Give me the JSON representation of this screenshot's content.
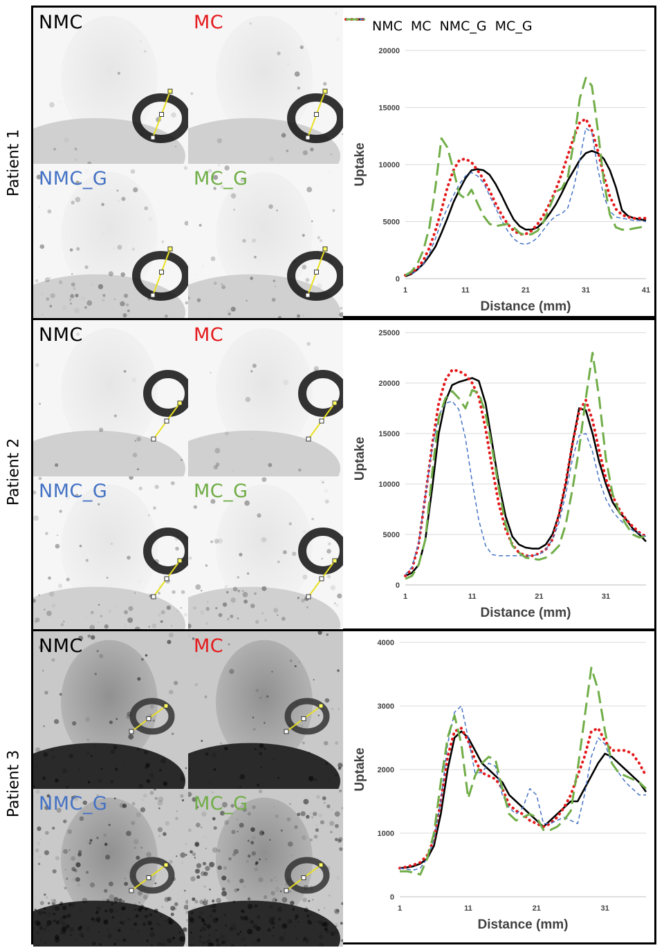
{
  "legend": [
    {
      "name": "NMC",
      "color": "#000000",
      "dash": ""
    },
    {
      "name": "MC",
      "color": "#e4191c",
      "dash": "1,7"
    },
    {
      "name": "NMC_G",
      "color": "#4472c4",
      "dash": "6,4"
    },
    {
      "name": "MC_G",
      "color": "#70ad47",
      "dash": "18,8"
    }
  ],
  "image_labels": [
    {
      "text": "NMC",
      "color": "#000000"
    },
    {
      "text": "MC",
      "color": "#e4191c"
    },
    {
      "text": "NMC_G",
      "color": "#4472c4"
    },
    {
      "text": "MC_G",
      "color": "#70ad47"
    }
  ],
  "patients": [
    {
      "label": "Patient 1"
    },
    {
      "label": "Patient 2"
    },
    {
      "label": "Patient 3"
    }
  ],
  "chart_data": [
    {
      "type": "line",
      "xlabel": "Distance (mm)",
      "ylabel": "Uptake",
      "x": [
        1,
        2,
        3,
        4,
        5,
        6,
        7,
        8,
        9,
        10,
        11,
        12,
        13,
        14,
        15,
        16,
        17,
        18,
        19,
        20,
        21,
        22,
        23,
        24,
        25,
        26,
        27,
        28,
        29,
        30,
        31,
        32,
        33,
        34,
        35,
        36,
        37,
        38,
        39,
        40,
        41
      ],
      "xticks": [
        1,
        11,
        21,
        31,
        41
      ],
      "xlim": [
        1,
        41
      ],
      "ylim": [
        0,
        20000
      ],
      "yticks": [
        0,
        5000,
        10000,
        15000,
        20000
      ],
      "series": [
        {
          "name": "NMC",
          "values": [
            200,
            400,
            800,
            1300,
            2000,
            2800,
            4000,
            5300,
            6700,
            7800,
            8800,
            9500,
            9600,
            9500,
            9100,
            8300,
            7300,
            6200,
            5200,
            4600,
            4300,
            4300,
            4500,
            5000,
            5700,
            6500,
            7500,
            8600,
            9500,
            10400,
            11000,
            11200,
            11000,
            10500,
            9500,
            8000,
            6000,
            5500,
            5300,
            5200,
            5100
          ]
        },
        {
          "name": "MC",
          "values": [
            300,
            500,
            900,
            1600,
            2700,
            4200,
            6000,
            8000,
            9500,
            10400,
            10500,
            10200,
            9500,
            8700,
            7700,
            6600,
            5600,
            4800,
            4200,
            3900,
            3900,
            4200,
            4800,
            5600,
            6600,
            7800,
            9200,
            10800,
            12400,
            13700,
            14000,
            13000,
            11200,
            9000,
            7200,
            6100,
            5600,
            5400,
            5300,
            5300,
            5300
          ]
        },
        {
          "name": "NMC_G",
          "values": [
            300,
            400,
            700,
            1300,
            2200,
            3500,
            5000,
            6200,
            7300,
            8300,
            9000,
            9300,
            9000,
            8400,
            7300,
            6200,
            5100,
            4200,
            3500,
            3100,
            3000,
            3200,
            3600,
            4300,
            5000,
            5500,
            5700,
            6200,
            8000,
            10500,
            13200,
            12800,
            9600,
            7200,
            5900,
            5400,
            5300,
            5200,
            5100,
            5100,
            5000
          ]
        },
        {
          "name": "MC_G",
          "values": [
            300,
            600,
            1300,
            2500,
            4500,
            8000,
            12300,
            11500,
            9500,
            7400,
            7000,
            7800,
            6600,
            5500,
            4800,
            4600,
            4700,
            4800,
            4500,
            4000,
            3800,
            3900,
            4200,
            5000,
            6300,
            7600,
            7900,
            8900,
            12000,
            15800,
            17600,
            16900,
            13000,
            8500,
            5600,
            4500,
            4300,
            4300,
            4400,
            4500,
            4600
          ]
        }
      ]
    },
    {
      "type": "line",
      "xlabel": "Distance (mm)",
      "ylabel": "Uptake",
      "x": [
        1,
        2,
        3,
        4,
        5,
        6,
        7,
        8,
        9,
        10,
        11,
        12,
        13,
        14,
        15,
        16,
        17,
        18,
        19,
        20,
        21,
        22,
        23,
        24,
        25,
        26,
        27,
        28,
        29,
        30,
        31,
        32,
        33,
        34,
        35,
        36,
        37
      ],
      "xticks": [
        1,
        11,
        21,
        31
      ],
      "xlim": [
        1,
        37
      ],
      "ylim": [
        0,
        25000
      ],
      "yticks": [
        0,
        5000,
        10000,
        15000,
        20000,
        25000
      ],
      "series": [
        {
          "name": "NMC",
          "values": [
            900,
            1200,
            2000,
            4500,
            9500,
            15000,
            18200,
            19800,
            20100,
            20300,
            20500,
            20200,
            18000,
            14000,
            10000,
            6800,
            4800,
            4000,
            3700,
            3600,
            3600,
            4000,
            5000,
            7000,
            10000,
            14000,
            17500,
            17300,
            15000,
            12200,
            10000,
            8200,
            7200,
            6500,
            5600,
            5000,
            4300
          ]
        },
        {
          "name": "MC",
          "values": [
            900,
            1600,
            4000,
            8800,
            13800,
            18000,
            20300,
            21300,
            21200,
            20800,
            20000,
            18600,
            15500,
            11500,
            8000,
            5500,
            4000,
            3200,
            2900,
            2900,
            3100,
            3500,
            4500,
            7000,
            10200,
            14000,
            17200,
            18300,
            16300,
            13300,
            10500,
            8800,
            7500,
            6500,
            5800,
            5200,
            4800
          ]
        },
        {
          "name": "NMC_G",
          "values": [
            1000,
            1800,
            4200,
            8800,
            13500,
            16800,
            18000,
            18200,
            17400,
            14500,
            10200,
            6400,
            3900,
            3000,
            2900,
            2900,
            2900,
            2900,
            2900,
            2900,
            3000,
            3500,
            4500,
            6200,
            9000,
            12500,
            14800,
            15000,
            13200,
            10400,
            8500,
            7300,
            6500,
            5900,
            5400,
            5100,
            4800
          ]
        },
        {
          "name": "MC_G",
          "values": [
            600,
            900,
            2000,
            4500,
            11000,
            16500,
            18500,
            19200,
            18500,
            17500,
            19300,
            19000,
            17000,
            13500,
            9500,
            6000,
            3900,
            3200,
            2700,
            2600,
            2500,
            2700,
            3200,
            3900,
            6000,
            9500,
            13500,
            18500,
            23000,
            18500,
            12500,
            9000,
            7200,
            6000,
            5000,
            4700,
            4800
          ]
        }
      ]
    },
    {
      "type": "line",
      "xlabel": "Distance (mm)",
      "ylabel": "Uptake",
      "x": [
        1,
        2,
        3,
        4,
        5,
        6,
        7,
        8,
        9,
        10,
        11,
        12,
        13,
        14,
        15,
        16,
        17,
        18,
        19,
        20,
        21,
        22,
        23,
        24,
        25,
        26,
        27,
        28,
        29,
        30,
        31,
        32,
        33,
        34,
        35,
        36,
        37
      ],
      "xticks": [
        1,
        11,
        21,
        31
      ],
      "xlim": [
        1,
        37
      ],
      "ylim": [
        0,
        4000
      ],
      "yticks": [
        0,
        1000,
        2000,
        3000,
        4000
      ],
      "series": [
        {
          "name": "NMC",
          "values": [
            450,
            460,
            480,
            520,
            600,
            800,
            1300,
            2000,
            2500,
            2600,
            2500,
            2300,
            2100,
            2000,
            1900,
            1800,
            1600,
            1500,
            1400,
            1300,
            1200,
            1100,
            1200,
            1300,
            1400,
            1500,
            1500,
            1700,
            1900,
            2100,
            2250,
            2200,
            2100,
            2000,
            1900,
            1800,
            1650
          ]
        },
        {
          "name": "MC",
          "values": [
            450,
            470,
            500,
            540,
            650,
            900,
            1500,
            2200,
            2600,
            2650,
            2450,
            2150,
            1950,
            1900,
            1850,
            1700,
            1450,
            1350,
            1300,
            1200,
            1150,
            1100,
            1150,
            1250,
            1400,
            1600,
            1900,
            2200,
            2600,
            2650,
            2450,
            2300,
            2300,
            2300,
            2250,
            2100,
            1900
          ]
        },
        {
          "name": "NMC_G",
          "values": [
            450,
            430,
            420,
            450,
            600,
            900,
            1500,
            2400,
            2900,
            3000,
            2500,
            1950,
            1950,
            2100,
            2050,
            1600,
            1400,
            1300,
            1400,
            1700,
            1600,
            1150,
            1150,
            1200,
            1250,
            1200,
            1150,
            1600,
            2200,
            2500,
            2400,
            2100,
            1950,
            1800,
            1700,
            1600,
            1600
          ]
        },
        {
          "name": "MC_G",
          "values": [
            400,
            400,
            380,
            350,
            600,
            1000,
            1800,
            2500,
            2850,
            2400,
            1550,
            1900,
            2100,
            2200,
            2150,
            1700,
            1300,
            1200,
            1250,
            1300,
            1250,
            1050,
            1050,
            1100,
            1200,
            1350,
            2000,
            2800,
            3600,
            3250,
            2600,
            2100,
            1950,
            1900,
            1850,
            1800,
            1700
          ]
        }
      ]
    }
  ]
}
